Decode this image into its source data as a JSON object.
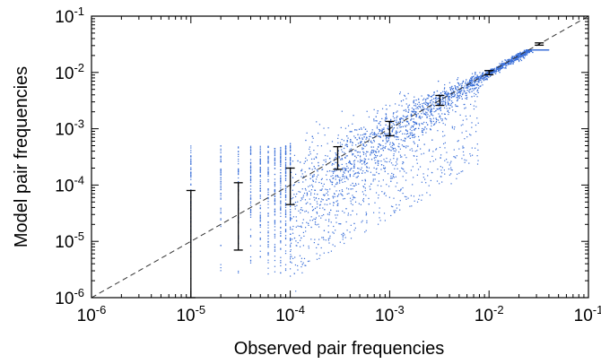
{
  "chart_data": {
    "type": "scatter",
    "title": "",
    "xlabel": "Observed pair frequencies",
    "ylabel": "Model pair frequencies",
    "x_scale": "log",
    "y_scale": "log",
    "xlim": [
      1e-06,
      0.1
    ],
    "ylim": [
      1e-06,
      0.1
    ],
    "grid": false,
    "legend": "none",
    "x_ticks": [
      {
        "base": "10",
        "exp": "-6"
      },
      {
        "base": "10",
        "exp": "-5"
      },
      {
        "base": "10",
        "exp": "-4"
      },
      {
        "base": "10",
        "exp": "-3"
      },
      {
        "base": "10",
        "exp": "-2"
      },
      {
        "base": "10",
        "exp": "-1"
      }
    ],
    "y_ticks": [
      {
        "base": "10",
        "exp": "-6"
      },
      {
        "base": "10",
        "exp": "-5"
      },
      {
        "base": "10",
        "exp": "-4"
      },
      {
        "base": "10",
        "exp": "-3"
      },
      {
        "base": "10",
        "exp": "-2"
      },
      {
        "base": "10",
        "exp": "-1"
      }
    ],
    "scatter_color": "#3a6fd8",
    "reference_line": {
      "style": "dashed",
      "color": "#333333",
      "from": [
        1e-06,
        1e-06
      ],
      "to": [
        0.1,
        0.1
      ]
    },
    "error_bars": [
      {
        "x": 1e-05,
        "y_low": 1e-06,
        "y_high": 8e-05
      },
      {
        "x": 3e-05,
        "y_low": 7e-06,
        "y_high": 0.00011
      },
      {
        "x": 0.0001,
        "y_low": 4.5e-05,
        "y_high": 0.0002
      },
      {
        "x": 0.0003,
        "y_low": 0.00019,
        "y_high": 0.00048
      },
      {
        "x": 0.001,
        "y_low": 0.00075,
        "y_high": 0.00135
      },
      {
        "x": 0.0032,
        "y_low": 0.0026,
        "y_high": 0.0039
      },
      {
        "x": 0.01,
        "y_low": 0.0091,
        "y_high": 0.0108
      },
      {
        "x": 0.032,
        "y_low": 0.0305,
        "y_high": 0.0335
      }
    ],
    "scatter_columns": [
      {
        "x": 1e-05,
        "y_min": 1e-06,
        "y_max": 0.0005
      },
      {
        "x": 2e-05,
        "y_min": 2e-06,
        "y_max": 0.0005
      },
      {
        "x": 3e-05,
        "y_min": 2e-06,
        "y_max": 0.0005
      },
      {
        "x": 4e-05,
        "y_min": 2e-06,
        "y_max": 0.0005
      },
      {
        "x": 5e-05,
        "y_min": 2e-06,
        "y_max": 0.0005
      },
      {
        "x": 6e-05,
        "y_min": 2e-06,
        "y_max": 0.0005
      },
      {
        "x": 7e-05,
        "y_min": 2e-06,
        "y_max": 0.0005
      },
      {
        "x": 8e-05,
        "y_min": 2e-06,
        "y_max": 0.0005
      },
      {
        "x": 9e-05,
        "y_min": 2e-06,
        "y_max": 0.0005
      },
      {
        "x": 0.0001,
        "y_min": 2e-06,
        "y_max": 0.0006
      }
    ]
  }
}
